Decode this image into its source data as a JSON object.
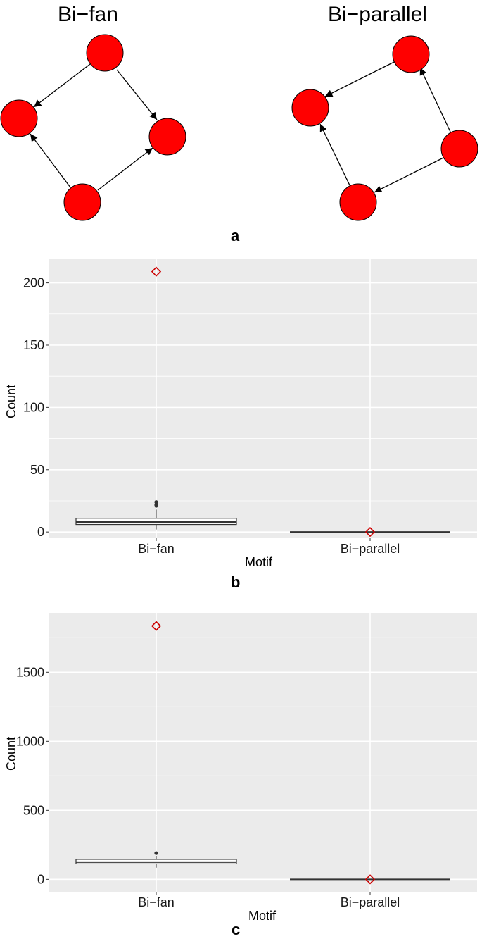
{
  "motifs_panel": {
    "label": "a",
    "bifan_title": "Bi−fan",
    "biparallel_title": "Bi−parallel",
    "node_color": "#ff0000"
  },
  "chart_data": [
    {
      "type": "box",
      "panel_label": "b",
      "xlabel": "Motif",
      "ylabel": "Count",
      "categories": [
        "Bi−fan",
        "Bi−parallel"
      ],
      "yticks": [
        0,
        50,
        100,
        150,
        200
      ],
      "ylim": [
        -5,
        219
      ],
      "grid": true,
      "boxes": [
        {
          "q1": 6,
          "median": 8,
          "q3": 11,
          "whisker_low": 2,
          "whisker_high": 18,
          "outliers": [
            21,
            22,
            24
          ]
        },
        {
          "q1": 0,
          "median": 0,
          "q3": 0,
          "whisker_low": 0,
          "whisker_high": 0,
          "outliers": []
        }
      ],
      "observed": [
        209,
        0
      ],
      "observed_color": "#cc0000"
    },
    {
      "type": "box",
      "panel_label": "c",
      "xlabel": "Motif",
      "ylabel": "Count",
      "categories": [
        "Bi−fan",
        "Bi−parallel"
      ],
      "yticks": [
        0,
        500,
        1000,
        1500
      ],
      "ylim": [
        -90,
        1930
      ],
      "grid": true,
      "boxes": [
        {
          "q1": 112,
          "median": 125,
          "q3": 145,
          "whisker_low": 85,
          "whisker_high": 170,
          "outliers": [
            190
          ]
        },
        {
          "q1": 0,
          "median": 0,
          "q3": 0,
          "whisker_low": 0,
          "whisker_high": 0,
          "outliers": []
        }
      ],
      "observed": [
        1835,
        0
      ],
      "observed_color": "#cc0000"
    }
  ]
}
